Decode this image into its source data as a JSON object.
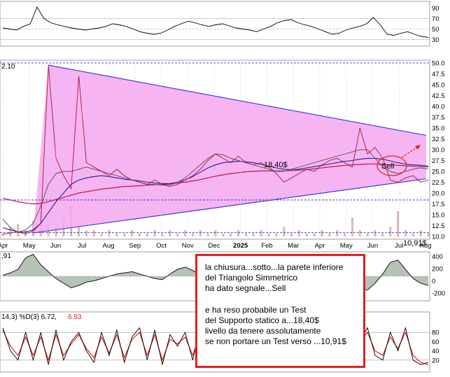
{
  "chart_data": {
    "type": "line",
    "title": "",
    "x_axis": {
      "ticks": [
        "Apr",
        "May",
        "Jun",
        "Jul",
        "Aug",
        "Sep",
        "Oct",
        "Nov",
        "Dec",
        "2025",
        "Feb",
        "Mar",
        "Apr",
        "May",
        "Jun",
        "Jul",
        "Aug"
      ]
    },
    "panels": {
      "rsi": {
        "y_ticks": [
          90,
          70,
          50,
          30
        ],
        "reference_lines": [
          70,
          50,
          30
        ],
        "values": [
          52,
          50,
          48,
          55,
          60,
          92,
          70,
          62,
          58,
          55,
          52,
          50,
          48,
          50,
          52,
          55,
          60,
          58,
          55,
          50,
          45,
          42,
          40,
          42,
          48,
          55,
          60,
          65,
          62,
          58,
          55,
          58,
          60,
          56,
          52,
          50,
          48,
          45,
          50,
          55,
          62,
          66,
          68,
          62,
          58,
          55,
          50,
          45,
          40,
          42,
          48,
          52,
          55,
          60,
          72,
          58,
          40,
          38,
          42,
          45,
          40,
          36,
          34
        ]
      },
      "price": {
        "y_ticks": [
          50.0,
          47.5,
          45.0,
          42.5,
          40.0,
          37.5,
          35.0,
          32.5,
          30.0,
          27.5,
          25.0,
          22.5,
          20.0,
          17.5,
          15.0,
          12.5,
          10.0
        ],
        "left_label": "2.10",
        "price_series": [
          10.5,
          10.8,
          11.0,
          10.6,
          11.2,
          13.0,
          49.5,
          28.0,
          24.0,
          21.0,
          47.0,
          27.0,
          26.0,
          25.0,
          24.0,
          25.5,
          24.0,
          23.0,
          22.5,
          22.0,
          23.0,
          22.0,
          21.5,
          22.0,
          23.0,
          24.0,
          25.5,
          27.5,
          29.0,
          28.0,
          27.0,
          28.5,
          27.0,
          26.5,
          27.0,
          26.0,
          24.5,
          22.5,
          23.5,
          24.5,
          25.5,
          25.0,
          26.5,
          27.5,
          28.0,
          27.0,
          26.0,
          35.0,
          29.0,
          30.5,
          28.0,
          23.0,
          22.5,
          23.5,
          24.0,
          22.5,
          23.0
        ],
        "ma_fast": [
          14.0,
          12.0,
          11.0,
          11.5,
          13.0,
          17.0,
          22.0,
          24.5,
          25.0,
          25.0,
          25.5,
          26.0,
          25.5,
          25.0,
          24.5,
          24.0,
          23.5,
          23.0,
          22.5,
          22.0,
          22.0,
          21.8,
          21.8,
          22.5,
          23.5,
          25.0,
          26.5,
          28.0,
          29.0,
          28.8,
          28.0,
          27.5,
          27.0,
          26.5,
          26.0,
          25.5,
          25.0,
          25.0,
          25.5,
          26.0,
          26.5,
          27.0,
          27.5,
          28.0,
          28.5,
          29.0,
          29.5,
          30.0,
          30.0,
          28.0,
          26.0,
          25.0,
          24.5,
          25.0,
          25.5,
          25.8,
          25.5
        ],
        "ma_mid": [
          12.0,
          11.5,
          11.0,
          11.0,
          11.5,
          13.0,
          15.5,
          18.0,
          20.0,
          22.0,
          23.0,
          23.5,
          23.8,
          24.0,
          23.8,
          23.5,
          23.2,
          23.0,
          22.8,
          22.5,
          22.3,
          22.2,
          22.2,
          22.5,
          23.0,
          23.8,
          24.8,
          25.8,
          26.5,
          27.0,
          27.2,
          27.3,
          27.2,
          27.0,
          26.6,
          26.2,
          25.8,
          25.5,
          25.4,
          25.5,
          25.8,
          26.1,
          26.4,
          26.7,
          27.0,
          27.3,
          27.5,
          27.8,
          28.0,
          28.0,
          27.8,
          27.4,
          27.0,
          26.7,
          26.5,
          26.4,
          26.2
        ],
        "ma_slow": [
          18.8,
          18.4,
          18.0,
          17.7,
          17.5,
          17.6,
          18.0,
          18.5,
          19.0,
          19.5,
          20.0,
          20.3,
          20.6,
          20.9,
          21.1,
          21.3,
          21.5,
          21.6,
          21.7,
          21.8,
          21.9,
          22.0,
          22.1,
          22.3,
          22.5,
          22.8,
          23.1,
          23.5,
          23.9,
          24.2,
          24.5,
          24.7,
          24.9,
          25.0,
          25.1,
          25.1,
          25.1,
          25.1,
          25.2,
          25.3,
          25.4,
          25.6,
          25.8,
          26.0,
          26.2,
          26.4,
          26.5,
          26.6,
          26.7,
          26.7,
          26.6,
          26.5,
          26.4,
          26.3,
          26.2,
          26.1,
          26.0
        ],
        "triangle": {
          "apex_high": 49.5,
          "upper_end": 33.3,
          "lower_start": 10.8,
          "lower_end": 23.3
        },
        "support_static": 18.4,
        "support_low": 10.91,
        "upper_dashed": 50.0,
        "volume": [
          1,
          3,
          4,
          2,
          5,
          9,
          4,
          3,
          6,
          10,
          3,
          2,
          2,
          1,
          2,
          1,
          1,
          2,
          1,
          1,
          2,
          1,
          2,
          1,
          2,
          1,
          2,
          1,
          2,
          1,
          1,
          2,
          1,
          1,
          2,
          1,
          1,
          3,
          1,
          2,
          1,
          1,
          2,
          1,
          2,
          1,
          6,
          2,
          1,
          2,
          1,
          3,
          8,
          2,
          1,
          2,
          1
        ],
        "annotations": [
          {
            "text": "18,40$",
            "color": "#000000"
          },
          {
            "text": "10,91$",
            "color": "#000000"
          },
          {
            "text": "Sell",
            "color": "#000000"
          }
        ]
      },
      "macd": {
        "y_ticks": [
          400,
          200,
          0,
          -200
        ],
        "left_label": ",91",
        "histogram": [
          0.05,
          0.15,
          0.3,
          0.8,
          0.95,
          0.5,
          0.2,
          -0.1,
          -0.3,
          -0.5,
          -0.4,
          -0.25,
          -0.2,
          -0.1,
          0.0,
          0.1,
          0.15,
          0.2,
          0.1,
          0.0,
          -0.1,
          -0.15,
          0.1,
          0.3,
          0.4,
          0.25,
          0.1,
          -0.05,
          -0.1,
          0.05,
          0.15,
          0.2,
          0.1,
          -0.05,
          -0.1,
          -0.2,
          -0.25,
          -0.1,
          0.05,
          0.2,
          0.35,
          0.5,
          0.3,
          0.1,
          -0.05,
          -0.2,
          -0.4,
          -0.5,
          -0.6,
          -0.3,
          0.1,
          0.6,
          0.7,
          0.3,
          -0.1,
          -0.3,
          -0.4
        ]
      },
      "stochastic": {
        "header_prefix": "14,3) %D(3) 6.72,",
        "header_value": "6.93",
        "y_ticks": [
          80,
          60,
          40,
          20
        ],
        "reference_lines": [
          80,
          20
        ],
        "k": [
          90,
          40,
          20,
          80,
          20,
          80,
          10,
          85,
          20,
          60,
          80,
          40,
          15,
          80,
          30,
          85,
          15,
          70,
          90,
          20,
          85,
          10,
          75,
          50,
          80,
          20,
          90,
          15,
          85,
          20,
          70,
          85,
          15,
          40,
          85,
          20,
          80,
          10,
          60,
          90,
          40,
          20,
          70,
          30,
          85,
          15,
          80,
          60,
          90,
          30,
          20,
          80,
          40,
          90,
          20,
          10,
          15
        ],
        "d": [
          85,
          50,
          30,
          70,
          30,
          70,
          20,
          75,
          30,
          55,
          75,
          45,
          25,
          70,
          35,
          75,
          25,
          65,
          80,
          30,
          75,
          20,
          65,
          55,
          70,
          30,
          80,
          25,
          75,
          30,
          65,
          75,
          25,
          40,
          75,
          30,
          70,
          20,
          55,
          80,
          45,
          30,
          65,
          35,
          75,
          25,
          70,
          60,
          80,
          40,
          30,
          70,
          45,
          80,
          30,
          15,
          10
        ]
      }
    }
  },
  "note": {
    "lines": [
      "la chiusura...sotto...la parete inferiore",
      "del Triangolo Simmetrico",
      "ha dato segnale...Sell",
      "",
      "e ha reso probabile un Test",
      "del Supporto statico a...18,40$",
      "livello da tenere assolutamente",
      "se non portare un Test verso ...10,91$"
    ]
  },
  "colors": {
    "triangle_fill": "#f5a8f0",
    "triangle_edge": "#3a3ae0",
    "price_line": "#b0103c",
    "ma_fast": "#5a5a5a",
    "ma_mid": "#2020a0",
    "ma_slow": "#c0104a",
    "annotation_red": "#e02020",
    "hist_pos": "#3a6a3a",
    "hist_neg": "#8a3030",
    "stoch_k": "#000000",
    "stoch_d": "#e02020"
  }
}
